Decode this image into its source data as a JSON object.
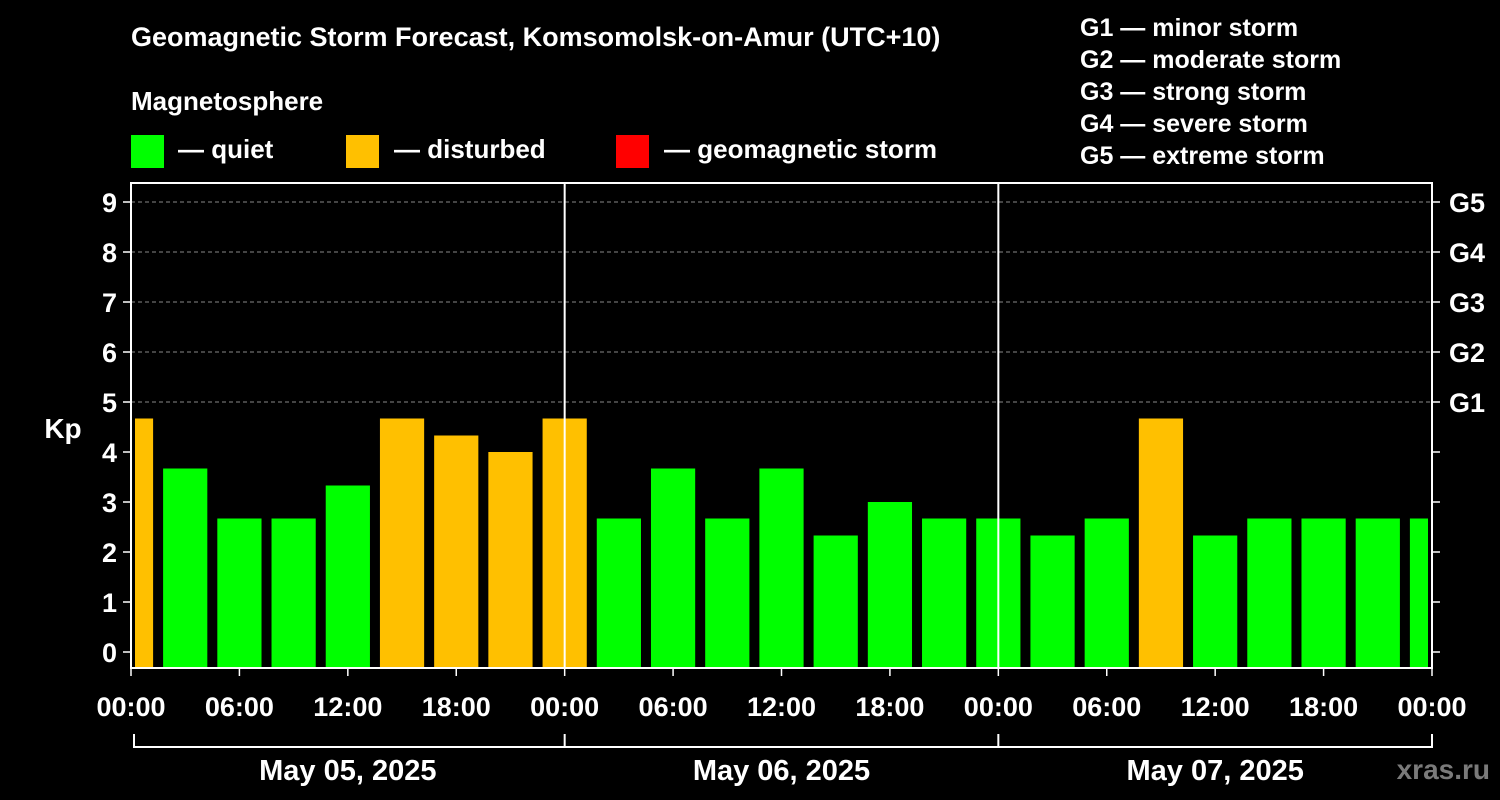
{
  "title": "Geomagnetic Storm Forecast, Komsomolsk-on-Amur (UTC+10)",
  "subtitle": "Magnetosphere",
  "legend": [
    {
      "label": "— quiet",
      "color": "#00ff00"
    },
    {
      "label": "— disturbed",
      "color": "#ffc000"
    },
    {
      "label": "— geomagnetic storm",
      "color": "#ff0000"
    }
  ],
  "storm_legend": [
    "G1 — minor storm",
    "G2 — moderate storm",
    "G3 — strong storm",
    "G4 — severe storm",
    "G5 — extreme storm"
  ],
  "watermark": "xras.ru",
  "chart_data": {
    "type": "bar",
    "title": "Geomagnetic Storm Forecast, Komsomolsk-on-Amur (UTC+10)",
    "ylabel": "Kp",
    "ylim": [
      0,
      9
    ],
    "yticks": [
      0,
      1,
      2,
      3,
      4,
      5,
      6,
      7,
      8,
      9
    ],
    "right_ticks": [
      {
        "value": 5,
        "label": "G1"
      },
      {
        "value": 6,
        "label": "G2"
      },
      {
        "value": 7,
        "label": "G3"
      },
      {
        "value": 8,
        "label": "G4"
      },
      {
        "value": 9,
        "label": "G5"
      }
    ],
    "x_tick_labels": [
      "00:00",
      "06:00",
      "12:00",
      "18:00",
      "00:00",
      "06:00",
      "12:00",
      "18:00",
      "00:00",
      "06:00",
      "12:00",
      "18:00",
      "00:00"
    ],
    "days": [
      "May 05, 2025",
      "May 06, 2025",
      "May 07, 2025"
    ],
    "interval_hours": 3,
    "values": [
      4.67,
      3.67,
      2.67,
      2.67,
      3.33,
      4.67,
      4.33,
      4.0,
      4.67,
      2.67,
      3.67,
      2.67,
      3.67,
      2.33,
      3.0,
      2.67,
      2.67,
      2.33,
      2.67,
      4.67,
      2.33,
      2.67,
      2.67,
      2.67,
      2.67
    ],
    "status": [
      "disturbed",
      "quiet",
      "quiet",
      "quiet",
      "quiet",
      "disturbed",
      "disturbed",
      "disturbed",
      "disturbed",
      "quiet",
      "quiet",
      "quiet",
      "quiet",
      "quiet",
      "quiet",
      "quiet",
      "quiet",
      "quiet",
      "quiet",
      "disturbed",
      "quiet",
      "quiet",
      "quiet",
      "quiet",
      "quiet"
    ],
    "colors": {
      "quiet": "#00ff00",
      "disturbed": "#ffc000",
      "storm": "#ff0000"
    }
  }
}
